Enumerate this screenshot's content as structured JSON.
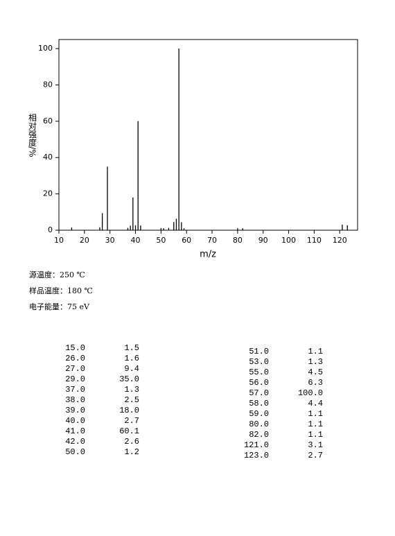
{
  "chart_data": {
    "type": "stem",
    "x_label": "m/z",
    "y_label": "相对强度/%",
    "x": [
      15,
      26,
      27,
      29,
      37,
      38,
      39,
      40,
      41,
      42,
      50,
      51,
      53,
      55,
      56,
      57,
      58,
      59,
      80,
      82,
      121,
      123
    ],
    "values": [
      1.5,
      1.6,
      9.4,
      35.0,
      1.3,
      2.5,
      18.0,
      2.7,
      60.1,
      2.6,
      1.2,
      1.1,
      1.3,
      4.5,
      6.3,
      100.0,
      4.4,
      1.1,
      1.1,
      1.1,
      3.1,
      2.7
    ],
    "color": "#000000",
    "xlim": [
      10,
      127
    ],
    "ylim": [
      0,
      105
    ],
    "xticks": [
      10,
      20,
      30,
      40,
      50,
      60,
      70,
      80,
      90,
      100,
      110,
      120
    ],
    "yticks": [
      0,
      20,
      40,
      60,
      80,
      100
    ]
  },
  "conditions": [
    "源温度：250 ℃",
    "样品温度：180 ℃",
    "电子能量：75 eV"
  ],
  "peak_table": {
    "left": [
      [
        "15.0",
        "1.5"
      ],
      [
        "26.0",
        "1.6"
      ],
      [
        "27.0",
        "9.4"
      ],
      [
        "29.0",
        "35.0"
      ],
      [
        "37.0",
        "1.3"
      ],
      [
        "38.0",
        "2.5"
      ],
      [
        "39.0",
        "18.0"
      ],
      [
        "40.0",
        "2.7"
      ],
      [
        "41.0",
        "60.1"
      ],
      [
        "42.0",
        "2.6"
      ],
      [
        "50.0",
        "1.2"
      ]
    ],
    "right": [
      [
        "51.0",
        "1.1"
      ],
      [
        "53.0",
        "1.3"
      ],
      [
        "55.0",
        "4.5"
      ],
      [
        "56.0",
        "6.3"
      ],
      [
        "57.0",
        "100.0"
      ],
      [
        "58.0",
        "4.4"
      ],
      [
        "59.0",
        "1.1"
      ],
      [
        "80.0",
        "1.1"
      ],
      [
        "82.0",
        "1.1"
      ],
      [
        "121.0",
        "3.1"
      ],
      [
        "123.0",
        "2.7"
      ]
    ]
  }
}
